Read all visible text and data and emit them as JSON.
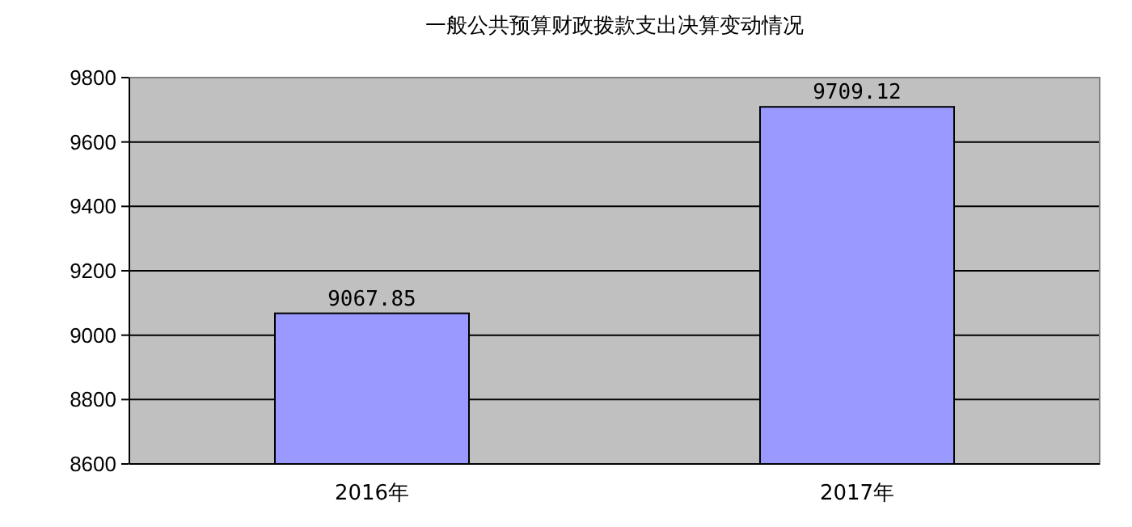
{
  "chart_data": {
    "type": "bar",
    "title": "一般公共预算财政拨款支出决算变动情况",
    "categories": [
      "2016年",
      "2017年"
    ],
    "values": [
      9067.85,
      9709.12
    ],
    "color": "#9999ff",
    "ylim": [
      8600,
      9800
    ],
    "yticks": [
      8600,
      8800,
      9000,
      9200,
      9400,
      9600,
      9800
    ],
    "grid": "y",
    "data_labels": true
  }
}
